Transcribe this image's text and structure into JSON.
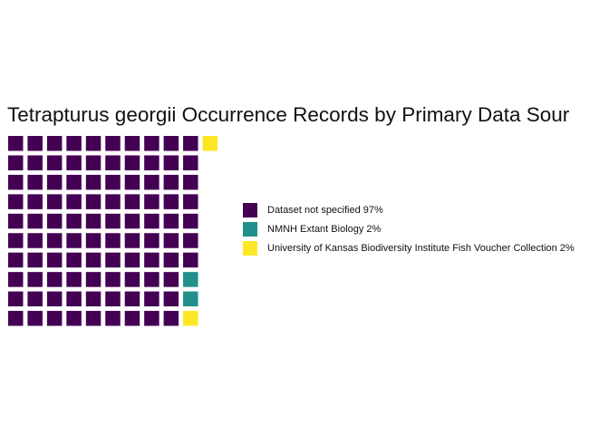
{
  "chart_data": {
    "type": "waffle",
    "title": "Tetrapturus georgii Occurrence Records by Primary Data Sour",
    "rows": 10,
    "series": [
      {
        "name": "Dataset not specified 97%",
        "percent": 97,
        "color": "#440154"
      },
      {
        "name": "NMNH Extant Biology 2%",
        "percent": 2,
        "color": "#21908C"
      },
      {
        "name": "University of Kansas Biodiversity Institute Fish Voucher Collection 2%",
        "percent": 2,
        "color": "#FDE725"
      }
    ],
    "legend_position": "right"
  }
}
